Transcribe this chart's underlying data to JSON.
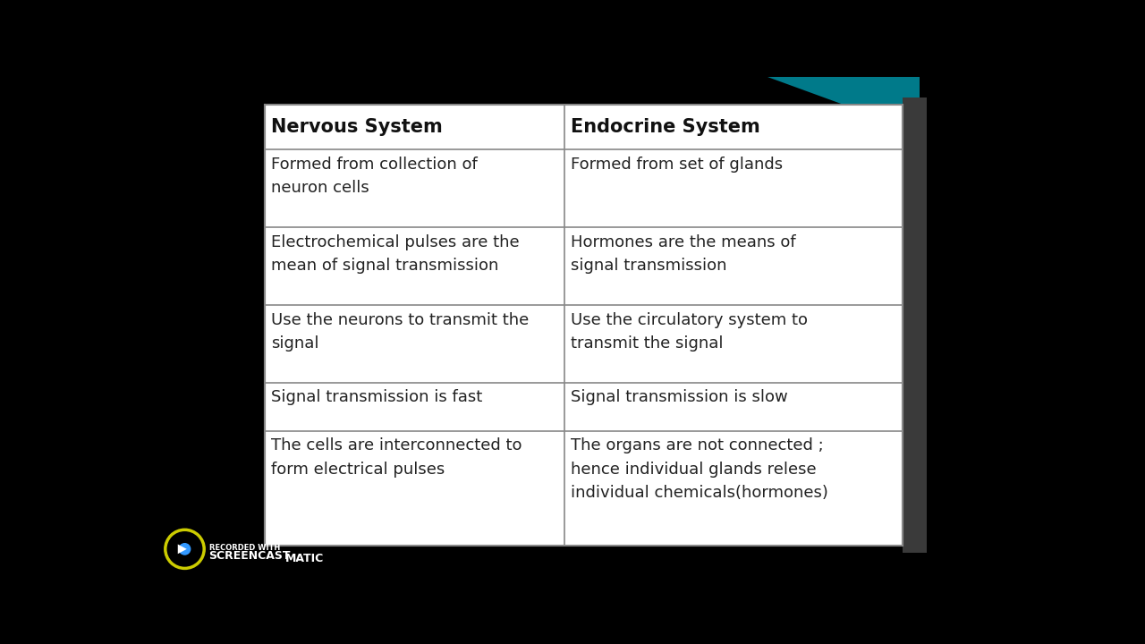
{
  "bg_color": "#000000",
  "table_bg": "#ffffff",
  "table_border": "#888888",
  "header_bg": "#ffffff",
  "text_color": "#222222",
  "header_text_color": "#111111",
  "col1_header": "Nervous System",
  "col2_header": "Endocrine System",
  "rows": [
    [
      "Formed from collection of\nneuron cells",
      "Formed from set of glands"
    ],
    [
      "Electrochemical pulses are the\nmean of signal transmission",
      "Hormones are the means of\nsignal transmission"
    ],
    [
      "Use the neurons to transmit the\nsignal",
      "Use the circulatory system to\ntransmit the signal"
    ],
    [
      "Signal transmission is fast",
      "Signal transmission is slow"
    ],
    [
      "The cells are interconnected to\nform electrical pulses",
      "The organs are not connected ;\nhence individual glands relese\nindividual chemicals(hormones)"
    ]
  ],
  "font_size_header": 15,
  "font_size_body": 13,
  "teal_color": "#008080",
  "gray_side": "#555555",
  "screencast_text": "RECORDED WITH\nSCREENCAST",
  "matic_text": "MATIC"
}
